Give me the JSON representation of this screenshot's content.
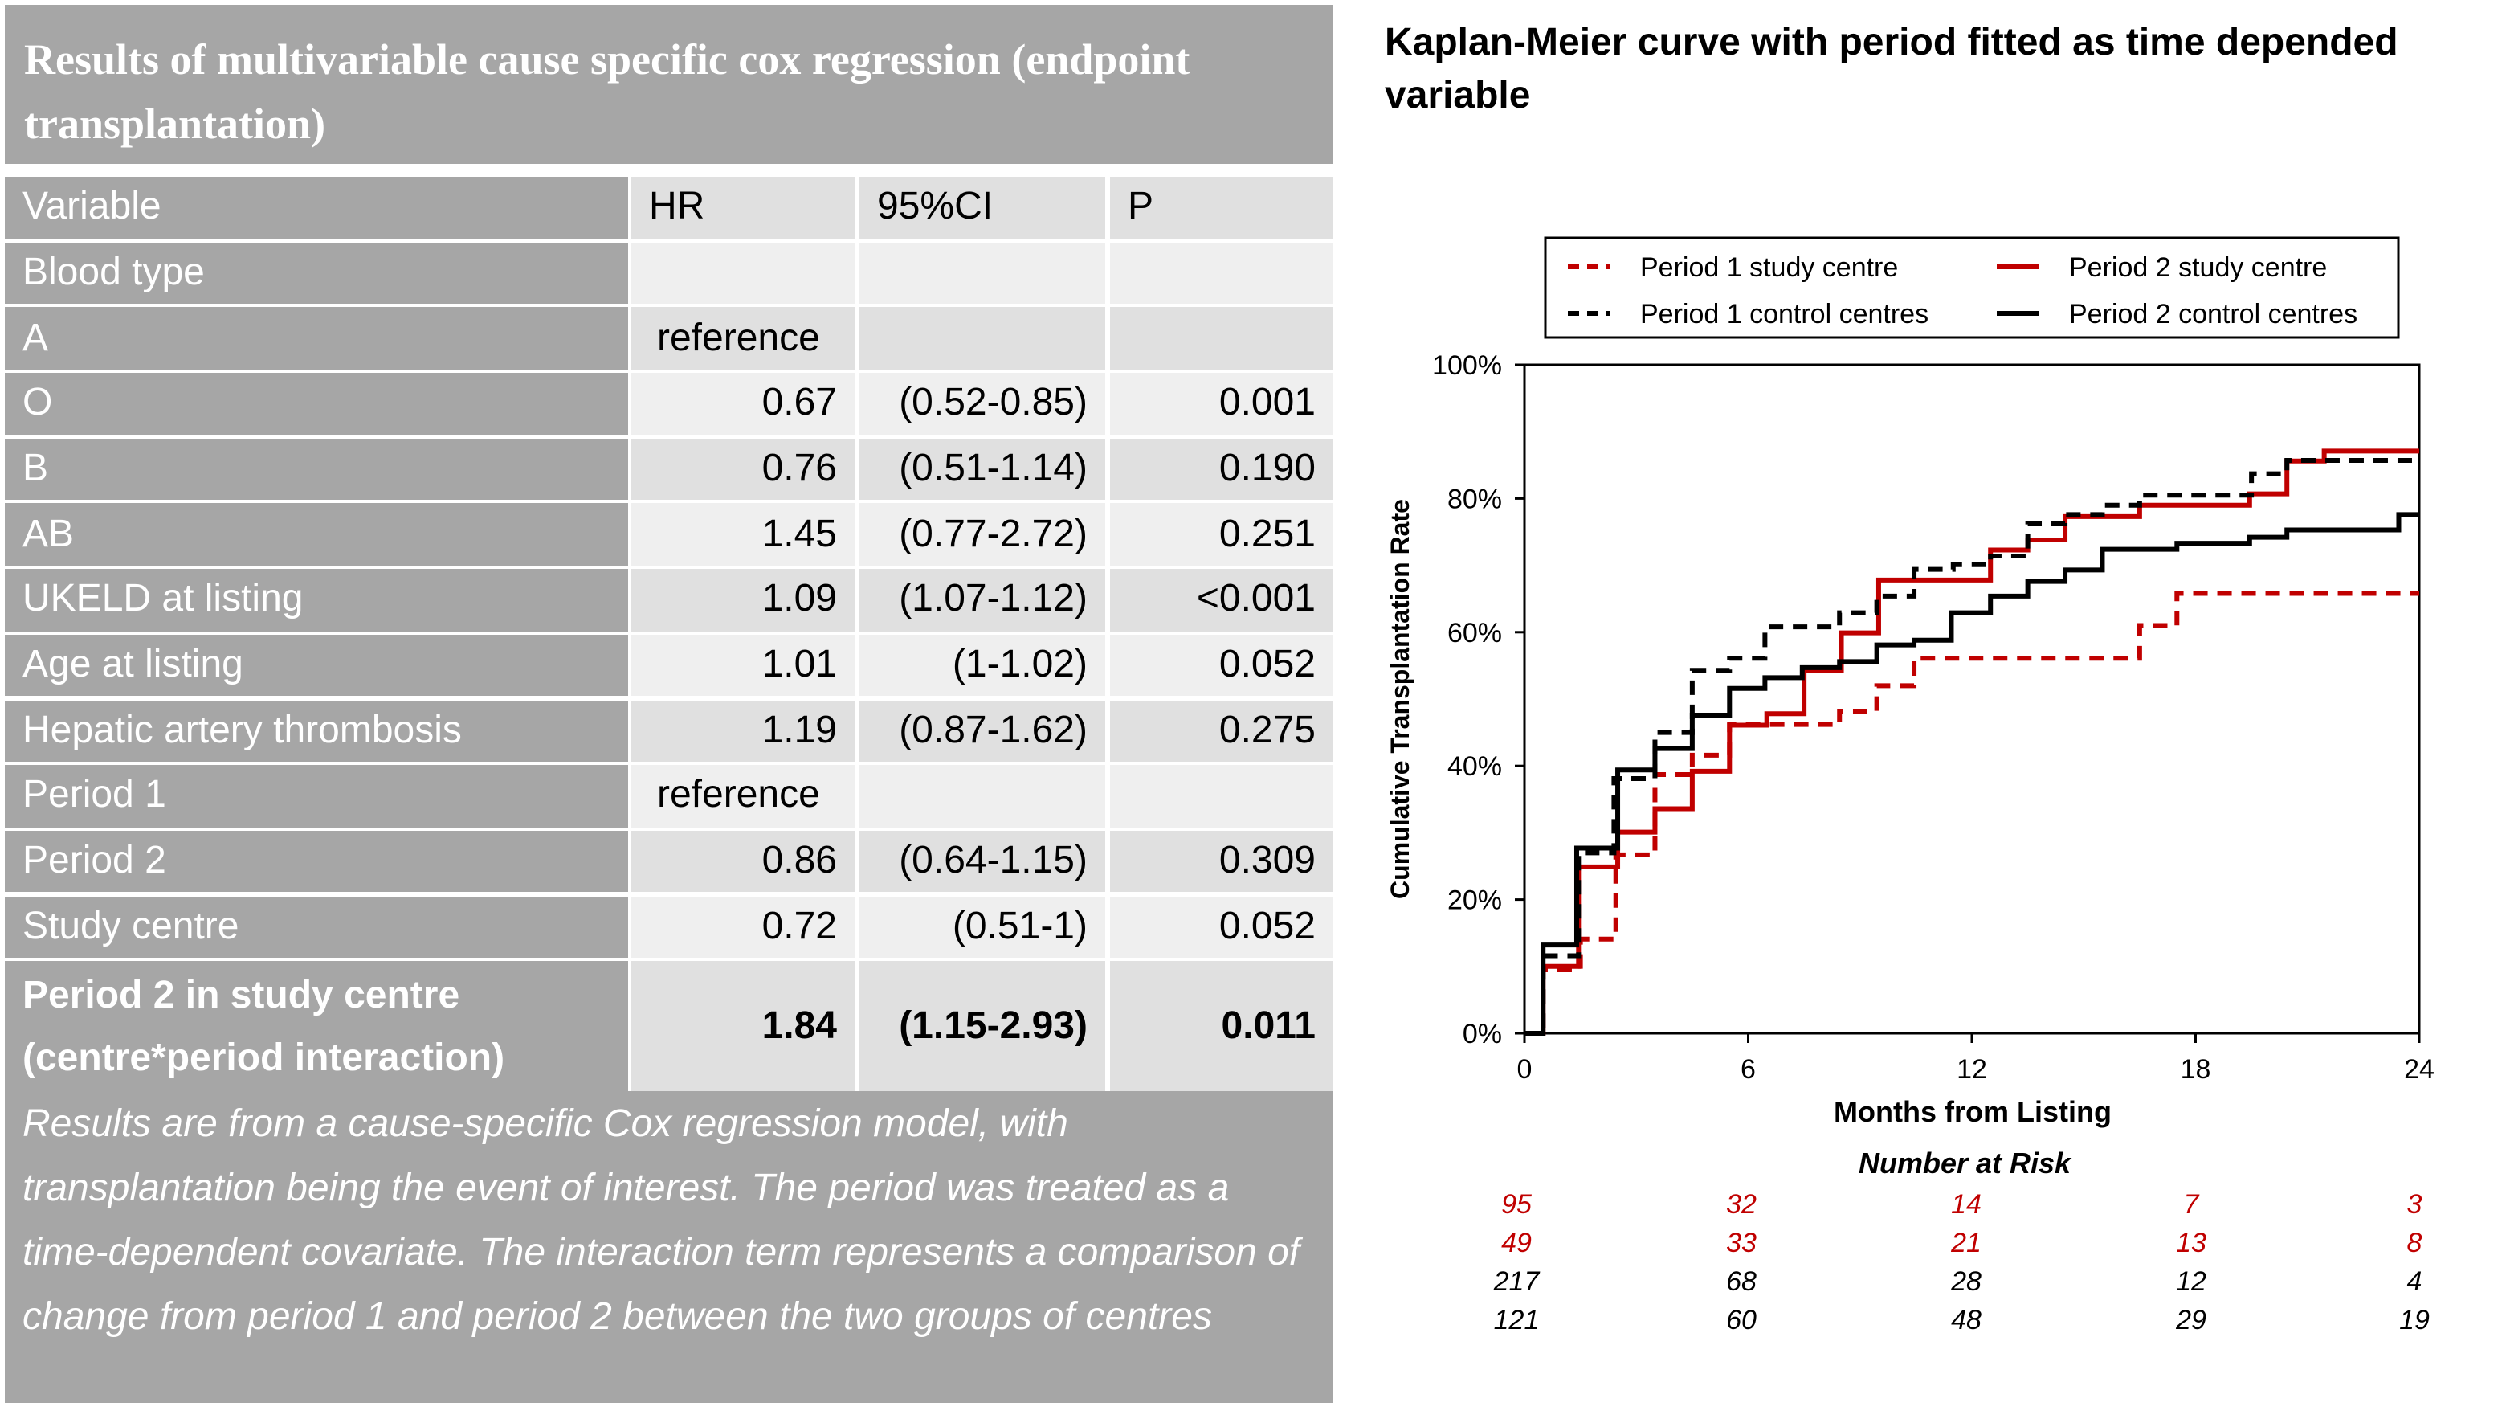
{
  "table": {
    "title": "Results of multivariable cause specific cox regression (endpoint transplantation)",
    "headers": [
      "Variable",
      "HR",
      "95%CI",
      "P"
    ],
    "rows": [
      {
        "variable": "Blood type",
        "hr": "",
        "ci": "",
        "p": ""
      },
      {
        "variable": "A",
        "hr": "reference",
        "ci": "",
        "p": ""
      },
      {
        "variable": "O",
        "hr": "0.67",
        "ci": "(0.52-0.85)",
        "p": "0.001"
      },
      {
        "variable": "B",
        "hr": "0.76",
        "ci": "(0.51-1.14)",
        "p": "0.190"
      },
      {
        "variable": "AB",
        "hr": "1.45",
        "ci": "(0.77-2.72)",
        "p": "0.251"
      },
      {
        "variable": "UKELD at listing",
        "hr": "1.09",
        "ci": "(1.07-1.12)",
        "p": "<0.001"
      },
      {
        "variable": "Age at listing",
        "hr": "1.01",
        "ci": "(1-1.02)",
        "p": "0.052"
      },
      {
        "variable": "Hepatic artery thrombosis",
        "hr": "1.19",
        "ci": "(0.87-1.62)",
        "p": "0.275"
      },
      {
        "variable": "Period 1",
        "hr": "reference",
        "ci": "",
        "p": ""
      },
      {
        "variable": "Period 2",
        "hr": "0.86",
        "ci": "(0.64-1.15)",
        "p": "0.309"
      },
      {
        "variable": "Study centre",
        "hr": "0.72",
        "ci": "(0.51-1)",
        "p": "0.052"
      },
      {
        "variable": "Period 2 in study centre (centre*period interaction)",
        "hr": "1.84",
        "ci": "(1.15-2.93)",
        "p": "0.011"
      }
    ],
    "footnote": "Results are from a cause-specific Cox regression model, with transplantation being the event of interest. The period was treated as a time-dependent covariate. The interaction term represents a comparison of change from period 1 and period 2 between the two groups of centres"
  },
  "chart_data": {
    "type": "line",
    "step": true,
    "title": "Kaplan-Meier curve with period fitted as time depended variable",
    "xlabel": "Months from Listing",
    "ylabel": "Cumulative Transplantation Rate",
    "xlim": [
      0,
      24
    ],
    "ylim": [
      0,
      100
    ],
    "xticks": [
      "0",
      "6",
      "12",
      "18",
      "24"
    ],
    "yticks": [
      "0%",
      "20%",
      "40%",
      "60%",
      "80%",
      "100%"
    ],
    "grid": false,
    "legend_placement": "top",
    "series": [
      {
        "name": "Period 1 study centre",
        "color": "#c00000",
        "dash": true,
        "x": [
          0,
          0.5,
          1.5,
          2.45,
          3.5,
          4.5,
          5.5,
          8.45,
          9.45,
          10.45,
          16.5,
          17.5,
          24
        ],
        "y": [
          0,
          9.5,
          14.1,
          26.7,
          38.7,
          41.6,
          46.2,
          48.2,
          52.0,
          56.1,
          61.0,
          65.8,
          65.8
        ]
      },
      {
        "name": "Period 2 study centre",
        "color": "#c00000",
        "dash": false,
        "x": [
          0,
          0.5,
          1.45,
          2.5,
          3.5,
          4.5,
          5.5,
          6.5,
          7.5,
          8.5,
          9.5,
          12.5,
          13.5,
          14.5,
          16.5,
          19.45,
          20.45,
          21.45,
          24
        ],
        "y": [
          0,
          10.0,
          24.9,
          30.1,
          33.6,
          39.2,
          46.1,
          47.8,
          54.3,
          59.9,
          67.8,
          72.3,
          73.8,
          77.3,
          79.0,
          80.7,
          85.6,
          87.1,
          87.1
        ]
      },
      {
        "name": "Period 1 control centres",
        "color": "#000000",
        "dash": true,
        "x": [
          0,
          0.5,
          1.45,
          2.4,
          3.5,
          4.5,
          5.5,
          6.45,
          8.45,
          9.45,
          10.45,
          11.5,
          12.5,
          13.5,
          14.5,
          15.5,
          16.5,
          19.5,
          20.45,
          24
        ],
        "y": [
          0,
          11.6,
          27.0,
          38.1,
          45.0,
          54.3,
          56.1,
          60.8,
          62.9,
          65.4,
          69.4,
          70.1,
          71.4,
          76.2,
          77.6,
          79.0,
          80.5,
          83.7,
          85.7,
          85.7
        ]
      },
      {
        "name": "Period 2 control centres",
        "color": "#000000",
        "dash": false,
        "x": [
          0,
          0.5,
          1.4,
          2.5,
          3.5,
          4.5,
          5.5,
          6.45,
          7.45,
          8.45,
          9.45,
          10.45,
          11.45,
          12.5,
          13.5,
          14.5,
          15.5,
          17.5,
          19.45,
          20.45,
          23.45,
          24
        ],
        "y": [
          0,
          13.2,
          27.7,
          39.4,
          42.6,
          47.6,
          51.6,
          53.2,
          54.7,
          55.6,
          58.1,
          58.8,
          62.9,
          65.4,
          67.6,
          69.3,
          72.4,
          73.3,
          74.2,
          75.3,
          77.6,
          77.6
        ]
      }
    ],
    "number_at_risk": {
      "label": "Number at Risk",
      "rows": [
        {
          "color": "#c00000",
          "values": [
            "95",
            "32",
            "14",
            "7",
            "3"
          ]
        },
        {
          "color": "#c00000",
          "values": [
            "49",
            "33",
            "21",
            "13",
            "8"
          ]
        },
        {
          "color": "#000000",
          "values": [
            "217",
            "68",
            "28",
            "12",
            "4"
          ]
        },
        {
          "color": "#000000",
          "values": [
            "121",
            "60",
            "48",
            "29",
            "19"
          ]
        }
      ]
    }
  }
}
